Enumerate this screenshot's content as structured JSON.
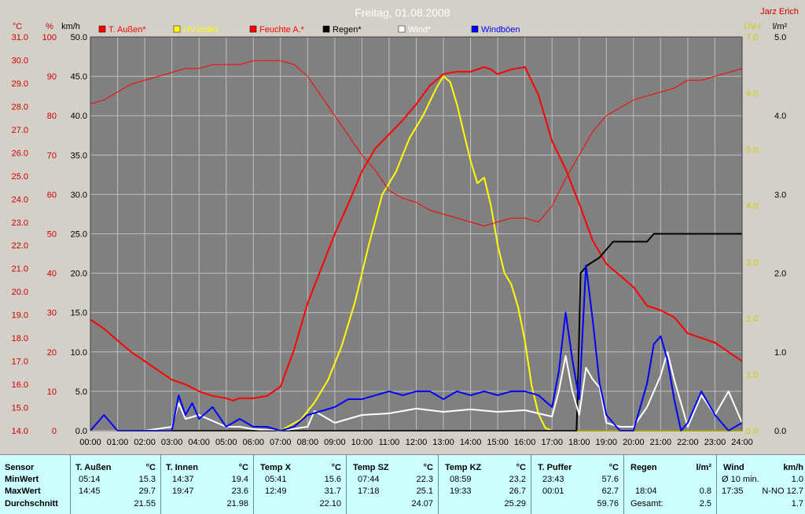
{
  "title": "Freitag, 01.08.2008",
  "author": "Jarz Erich",
  "axes": {
    "temp_unit": "°C",
    "humid_unit": "%",
    "wind_unit": "km/h",
    "uv_unit": "UV-I",
    "rain_unit": "l/m²",
    "temp_ticks": [
      "14.0",
      "15.0",
      "16.0",
      "17.0",
      "18.0",
      "19.0",
      "20.0",
      "21.0",
      "22.0",
      "23.0",
      "24.0",
      "25.0",
      "26.0",
      "27.0",
      "28.0",
      "29.0",
      "30.0",
      "31.0"
    ],
    "humid_ticks": [
      "0",
      "10",
      "20",
      "30",
      "40",
      "50",
      "60",
      "70",
      "80",
      "90",
      "100"
    ],
    "wind_ticks": [
      "0.0",
      "5.0",
      "10.0",
      "15.0",
      "20.0",
      "25.0",
      "30.0",
      "35.0",
      "40.0",
      "45.0",
      "50.0"
    ],
    "uv_ticks": [
      "0.0",
      "1.0",
      "2.0",
      "3.0",
      "4.0",
      "5.0",
      "6.0",
      "7.0"
    ],
    "rain_ticks": [
      "0.0",
      "1.0",
      "2.0",
      "3.0",
      "4.0",
      "5.0"
    ],
    "time_ticks": [
      "00:00",
      "01:00",
      "02:00",
      "03:00",
      "04:00",
      "05:00",
      "06:00",
      "07:00",
      "08:00",
      "09:00",
      "10:00",
      "11:00",
      "12:00",
      "13:00",
      "14:00",
      "15:00",
      "16:00",
      "17:00",
      "18:00",
      "19:00",
      "20:00",
      "21:00",
      "22:00",
      "23:00",
      "24:00"
    ]
  },
  "legend": [
    {
      "label": "T. Außen*",
      "color": "#ff0000"
    },
    {
      "label": "UV Index",
      "color": "#ffff00"
    },
    {
      "label": "Feuchte A.*",
      "color": "#ff0000"
    },
    {
      "label": "Regen*",
      "color": "#000000"
    },
    {
      "label": "Wind*",
      "color": "#ffffff"
    },
    {
      "label": "Windböen",
      "color": "#0000ff"
    }
  ],
  "colors": {
    "plot_bg": "#808080",
    "temp_axis": "#cc0000",
    "uv_axis": "#cccc00",
    "grid": "#bfbfbf"
  },
  "chart_data": {
    "type": "line",
    "title": "Freitag, 01.08.2008",
    "x_unit": "hour",
    "xlim": [
      0,
      24
    ],
    "series": [
      {
        "name": "T. Außen*",
        "axis": "°C",
        "ylim": [
          14,
          31
        ],
        "color": "#ff0000",
        "x": [
          0,
          0.5,
          1,
          1.5,
          2,
          2.5,
          3,
          3.5,
          4,
          4.5,
          5,
          5.25,
          5.5,
          6,
          6.5,
          7,
          7.5,
          8,
          8.5,
          9,
          9.5,
          10,
          10.5,
          11,
          11.5,
          12,
          12.5,
          13,
          13.5,
          14,
          14.25,
          14.5,
          14.75,
          15,
          15.5,
          16,
          16.5,
          17,
          17.5,
          18,
          18.5,
          19,
          19.5,
          20,
          20.5,
          21,
          21.5,
          22,
          22.5,
          23,
          23.5,
          24
        ],
        "y": [
          18.8,
          18.4,
          17.9,
          17.4,
          17.0,
          16.6,
          16.2,
          16.0,
          15.7,
          15.5,
          15.4,
          15.3,
          15.4,
          15.4,
          15.5,
          15.9,
          17.5,
          19.5,
          21.0,
          22.5,
          23.8,
          25.2,
          26.2,
          26.8,
          27.4,
          28.1,
          28.9,
          29.4,
          29.5,
          29.5,
          29.6,
          29.7,
          29.6,
          29.4,
          29.6,
          29.7,
          28.5,
          26.5,
          25.3,
          23.8,
          22.2,
          21.2,
          20.7,
          20.2,
          19.4,
          19.2,
          18.9,
          18.2,
          18.0,
          17.8,
          17.4,
          17.0
        ]
      },
      {
        "name": "UV Index",
        "axis": "UV-I",
        "ylim": [
          0,
          7
        ],
        "color": "#ffff00",
        "x": [
          0,
          7,
          7.75,
          8.25,
          8.75,
          9.25,
          9.75,
          10.25,
          10.75,
          11.25,
          11.75,
          12.25,
          12.75,
          13.0,
          13.25,
          13.5,
          13.75,
          14.0,
          14.25,
          14.5,
          14.75,
          15.0,
          15.25,
          15.5,
          15.75,
          16.0,
          16.25,
          16.5,
          16.75,
          17.0,
          17.25,
          24
        ],
        "y": [
          0,
          0,
          0.2,
          0.5,
          0.9,
          1.5,
          2.3,
          3.3,
          4.2,
          4.6,
          5.2,
          5.6,
          6.1,
          6.3,
          6.2,
          5.8,
          5.3,
          4.8,
          4.4,
          4.5,
          4.0,
          3.3,
          2.8,
          2.6,
          2.2,
          1.6,
          0.8,
          0.3,
          0.05,
          0,
          0,
          0
        ]
      },
      {
        "name": "Feuchte A.*",
        "axis": "%",
        "ylim": [
          0,
          100
        ],
        "color": "#ff0000",
        "x": [
          0,
          0.5,
          1,
          1.5,
          2,
          2.5,
          3,
          3.5,
          4,
          4.5,
          5,
          5.5,
          6,
          6.5,
          7,
          7.5,
          8,
          8.5,
          9,
          9.5,
          10,
          10.5,
          11,
          11.5,
          12,
          12.5,
          13,
          13.5,
          14,
          14.5,
          15,
          15.5,
          16,
          16.5,
          17,
          17.5,
          18,
          18.5,
          19,
          19.5,
          20,
          20.5,
          21,
          21.5,
          22,
          22.5,
          23,
          23.5,
          24
        ],
        "y": [
          83,
          84,
          86,
          88,
          89,
          90,
          91,
          92,
          92,
          93,
          93,
          93,
          94,
          94,
          94,
          93,
          90,
          85,
          80,
          75,
          70,
          66,
          61,
          59,
          58,
          56,
          55,
          54,
          53,
          52,
          53,
          54,
          54,
          53,
          57,
          64,
          70,
          76,
          80,
          82,
          84,
          85,
          86,
          87,
          89,
          89,
          90,
          91,
          92
        ]
      },
      {
        "name": "Regen*",
        "axis": "l/m²",
        "ylim": [
          0,
          5
        ],
        "color": "#000000",
        "x": [
          0,
          17.9,
          17.95,
          18.05,
          18.3,
          18.75,
          19,
          19.25,
          20.5,
          20.75,
          21,
          24
        ],
        "y": [
          0,
          0,
          0.5,
          2.0,
          2.1,
          2.2,
          2.3,
          2.4,
          2.4,
          2.5,
          2.5,
          2.5
        ]
      },
      {
        "name": "Wind*",
        "axis": "km/h",
        "ylim": [
          0,
          50
        ],
        "color": "#ffffff",
        "x": [
          0,
          1,
          2,
          3,
          3.25,
          3.5,
          4,
          5,
          5.5,
          6,
          7,
          8,
          8.25,
          9,
          9.5,
          10,
          11,
          12,
          13,
          14,
          15,
          16,
          16.5,
          17,
          17.25,
          17.5,
          17.75,
          18,
          18.25,
          18.5,
          18.75,
          19,
          19.5,
          20,
          20.5,
          21,
          21.25,
          21.5,
          22,
          22.5,
          23,
          23.5,
          24
        ],
        "y": [
          0,
          0,
          0,
          0.5,
          3.5,
          1.5,
          2,
          0.5,
          0.5,
          0.2,
          0,
          0.5,
          2.5,
          1,
          1.5,
          2,
          2.2,
          2.8,
          2.4,
          2.7,
          2.4,
          2.6,
          2.2,
          1.8,
          5,
          9.5,
          5,
          2,
          8,
          6.5,
          5.5,
          1,
          0.5,
          0.5,
          3,
          7,
          10,
          6.5,
          0.5,
          4.5,
          2,
          5,
          1
        ]
      },
      {
        "name": "Windböen",
        "axis": "km/h",
        "ylim": [
          0,
          50
        ],
        "color": "#0000ff",
        "x": [
          0,
          0.5,
          1,
          1.5,
          2,
          2.5,
          3,
          3.25,
          3.5,
          3.75,
          4,
          4.5,
          5,
          5.5,
          6,
          6.5,
          7,
          7.5,
          8,
          8.5,
          9,
          9.5,
          10,
          10.5,
          11,
          11.5,
          12,
          12.5,
          13,
          13.5,
          14,
          14.5,
          15,
          15.5,
          16,
          16.5,
          17,
          17.25,
          17.5,
          17.75,
          18,
          18.25,
          18.5,
          18.75,
          19,
          19.5,
          20,
          20.5,
          20.75,
          21,
          21.25,
          21.5,
          21.75,
          22,
          22.5,
          23,
          23.5,
          24
        ],
        "y": [
          0,
          2,
          0,
          0,
          0,
          0,
          0,
          4.5,
          2,
          3.5,
          1.5,
          3,
          0.5,
          1.5,
          0.5,
          0.5,
          0,
          0.5,
          2,
          2.5,
          3,
          4,
          4,
          4.5,
          5,
          4.5,
          5,
          5,
          4,
          5,
          4.5,
          5,
          4.5,
          5,
          5,
          4.5,
          3,
          7.5,
          15,
          9,
          4,
          21,
          14,
          6,
          2,
          0,
          0,
          6,
          11,
          12,
          9,
          4,
          0,
          1,
          5,
          2,
          0,
          1
        ]
      }
    ]
  },
  "stats": {
    "headers": {
      "sensor": "Sensor",
      "t_aussen": "T. Außen",
      "t_innen": "T. Innen",
      "temp_x": "Temp X",
      "temp_sz": "Temp SZ",
      "temp_kz": "Temp KZ",
      "t_puffer": "T. Puffer",
      "regen": "Regen",
      "wind": "Wind"
    },
    "units": {
      "celsius": "°C",
      "rain": "l/m²",
      "wind": "km/h"
    },
    "rows": {
      "min": "MinWert",
      "max": "MaxWert",
      "avg": "Durchschnitt"
    },
    "t_aussen": {
      "min_time": "05:14",
      "min": "15.3",
      "max_time": "14:45",
      "max": "29.7",
      "avg": "21.55"
    },
    "t_innen": {
      "min_time": "14:37",
      "min": "19.4",
      "max_time": "19:47",
      "max": "23.6",
      "avg": "21.98"
    },
    "temp_x": {
      "min_time": "05:41",
      "min": "15.6",
      "max_time": "12:49",
      "max": "31.7",
      "avg": "22.10"
    },
    "temp_sz": {
      "min_time": "07:44",
      "min": "22.3",
      "max_time": "17:18",
      "max": "25.1",
      "avg": "24.07"
    },
    "temp_kz": {
      "min_time": "08:59",
      "min": "23.2",
      "max_time": "19:33",
      "max": "26.7",
      "avg": "25.29"
    },
    "t_puffer": {
      "min_time": "23:43",
      "min": "57.6",
      "max_time": "00:01",
      "max": "62.7",
      "avg": "59.76"
    },
    "regen": {
      "max_time": "18:04",
      "max": "0.8",
      "total_label": "Gesamt:",
      "total": "2.5"
    },
    "wind": {
      "min_label": "Ø 10 min.",
      "min": "1.0",
      "max_time": "17:35",
      "max": "N-NO 12.7",
      "avg": "1.7"
    }
  }
}
